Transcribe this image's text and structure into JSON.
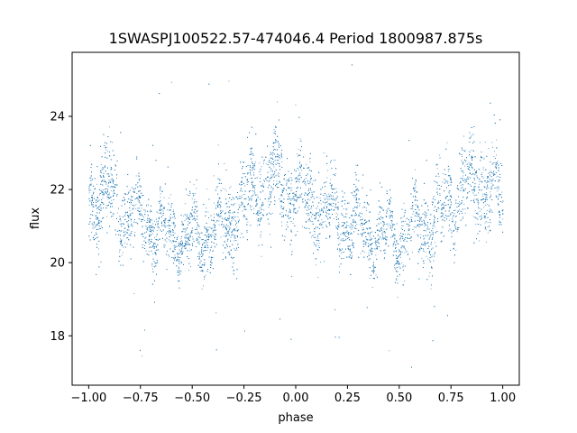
{
  "chart_data": {
    "type": "scatter",
    "title": "1SWASPJ100522.57-474046.4 Period 1800987.875s",
    "xlabel": "phase",
    "ylabel": "flux",
    "xlim": [
      -1.08,
      1.08
    ],
    "ylim": [
      16.65,
      25.75
    ],
    "x_ticks": [
      -1.0,
      -0.75,
      -0.5,
      -0.25,
      0.0,
      0.25,
      0.5,
      0.75,
      1.0
    ],
    "x_tick_labels": [
      "−1.00",
      "−0.75",
      "−0.50",
      "−0.25",
      "0.00",
      "0.25",
      "0.50",
      "0.75",
      "1.00"
    ],
    "y_ticks": [
      18,
      20,
      22,
      24
    ],
    "y_tick_labels": [
      "18",
      "20",
      "22",
      "24"
    ],
    "grid": false,
    "point_color": "#1f77b4",
    "series": [
      {
        "points_profile": {
          "phase": [
            -1.0,
            -0.9,
            -0.8,
            -0.7,
            -0.6,
            -0.5,
            -0.4,
            -0.3,
            -0.2,
            -0.1,
            0.0,
            0.1,
            0.2,
            0.3,
            0.4,
            0.5,
            0.6,
            0.7,
            0.8,
            0.9,
            1.0
          ],
          "mean_flux": [
            21.6,
            21.9,
            21.3,
            21.0,
            20.8,
            20.7,
            20.9,
            21.3,
            22.0,
            22.3,
            21.8,
            21.6,
            21.3,
            21.0,
            20.8,
            20.7,
            20.9,
            21.3,
            22.0,
            22.3,
            21.6
          ],
          "spread": [
            0.8,
            0.8,
            0.7,
            0.6,
            0.6,
            0.6,
            0.7,
            0.8,
            0.8,
            0.8,
            0.8,
            0.8,
            0.7,
            0.6,
            0.6,
            0.6,
            0.7,
            0.8,
            0.8,
            0.8,
            0.8
          ]
        },
        "n_points": 9000,
        "outlier_range": [
          17.0,
          25.5
        ]
      }
    ]
  }
}
